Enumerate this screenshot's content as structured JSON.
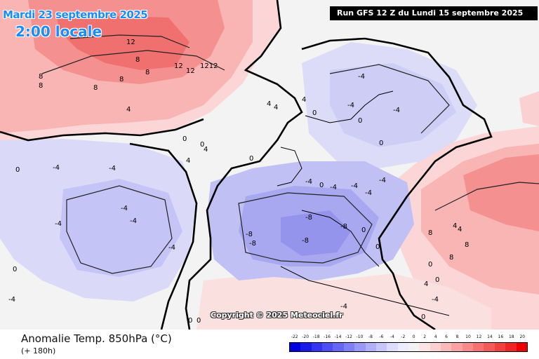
{
  "header": {
    "date": "Mardi 23 septembre 2025",
    "time": "2:00 locale",
    "run": "Run GFS 12 Z du Lundi 15 septembre 2025"
  },
  "copyright": "Copyright © 2025 Meteociel.fr",
  "footer": {
    "title": "Anomalie Temp. 850hPa (°C)",
    "lead": "(+ 180h)"
  },
  "legend": {
    "labels": [
      "-22",
      "-20",
      "-18",
      "-16",
      "-14",
      "-12",
      "-10",
      "-8",
      "-6",
      "-4",
      "-2",
      "0",
      "2",
      "4",
      "6",
      "8",
      "10",
      "12",
      "14",
      "16",
      "18",
      "20"
    ],
    "colors": [
      "#0000e0",
      "#1a1ae8",
      "#3333f0",
      "#4d4df4",
      "#6666f4",
      "#7f7ff6",
      "#9898f6",
      "#b0b0f8",
      "#c6c6fa",
      "#dcdcfc",
      "#ececfe",
      "#f2f2f2",
      "#fde4e4",
      "#fcd0d0",
      "#fbbaba",
      "#faa2a2",
      "#f88a8a",
      "#f67272",
      "#f45a5a",
      "#f24040",
      "#f02424",
      "#ee0000"
    ]
  },
  "map_labels": [
    {
      "text": "12"
    },
    {
      "text": "8"
    },
    {
      "text": "8"
    },
    {
      "text": "12"
    },
    {
      "text": "12"
    },
    {
      "text": "1212"
    },
    {
      "text": "8"
    },
    {
      "text": "8"
    },
    {
      "text": "8"
    },
    {
      "text": "8"
    },
    {
      "text": "4"
    },
    {
      "text": "4"
    },
    {
      "text": "4"
    },
    {
      "text": "4"
    },
    {
      "text": "0"
    },
    {
      "text": "0"
    },
    {
      "text": "4"
    },
    {
      "text": "4"
    },
    {
      "text": "0"
    },
    {
      "text": "-4"
    },
    {
      "text": "0"
    },
    {
      "text": "-4"
    },
    {
      "text": "-4"
    },
    {
      "text": "-4"
    },
    {
      "text": "-4"
    },
    {
      "text": "-4"
    },
    {
      "text": "0"
    },
    {
      "text": "-4"
    },
    {
      "text": "-4"
    },
    {
      "text": "-4"
    },
    {
      "text": "0"
    },
    {
      "text": "0"
    },
    {
      "text": "-4"
    },
    {
      "text": "-4"
    },
    {
      "text": "-4"
    },
    {
      "text": "0"
    },
    {
      "text": "-4"
    },
    {
      "text": "-4"
    },
    {
      "text": "-8"
    },
    {
      "text": "-8"
    },
    {
      "text": "-8"
    },
    {
      "text": "-8"
    },
    {
      "text": "-8"
    },
    {
      "text": "0"
    },
    {
      "text": "0"
    },
    {
      "text": "4"
    },
    {
      "text": "4"
    },
    {
      "text": "8"
    },
    {
      "text": "8"
    },
    {
      "text": "8"
    },
    {
      "text": "0"
    },
    {
      "text": "4"
    },
    {
      "text": "-4"
    },
    {
      "text": "0"
    },
    {
      "text": "-4"
    },
    {
      "text": "0"
    },
    {
      "text": "0"
    },
    {
      "text": "-4"
    },
    {
      "text": "0"
    },
    {
      "text": "0"
    }
  ]
}
